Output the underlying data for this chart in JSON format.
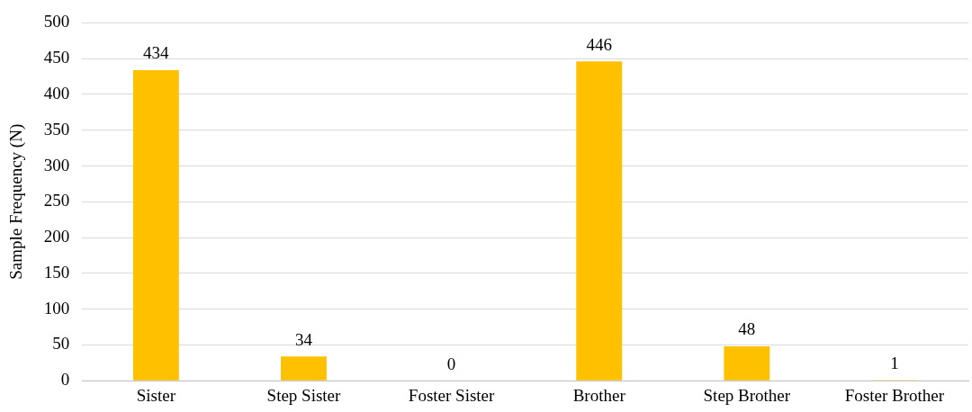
{
  "chart_data": {
    "type": "bar",
    "ylabel": "Sample Frequency (N)",
    "categories": [
      "Sister",
      "Step Sister",
      "Foster Sister",
      "Brother",
      "Step Brother",
      "Foster Brother"
    ],
    "values": [
      434,
      34,
      0,
      446,
      48,
      1
    ],
    "color": "#ffc000",
    "ylim": [
      0,
      500
    ],
    "yticks": [
      0,
      50,
      100,
      150,
      200,
      250,
      300,
      350,
      400,
      450,
      500
    ],
    "grid": "y",
    "data_labels": true
  }
}
